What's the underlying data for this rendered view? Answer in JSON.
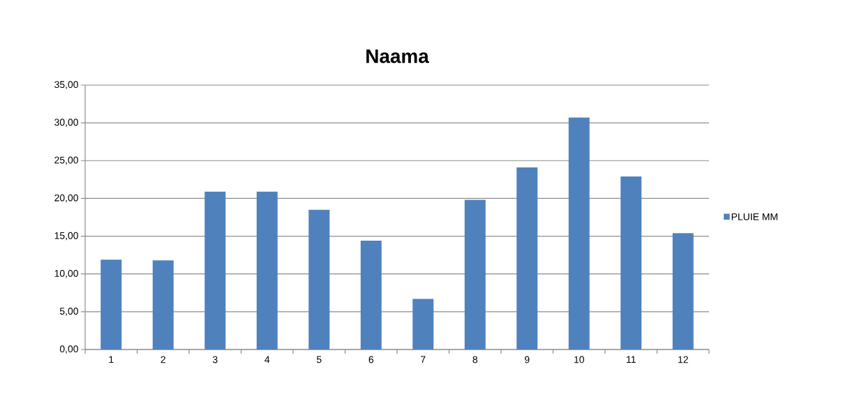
{
  "chart_data": {
    "type": "bar",
    "title": "Naama",
    "categories": [
      "1",
      "2",
      "3",
      "4",
      "5",
      "6",
      "7",
      "8",
      "9",
      "10",
      "11",
      "12"
    ],
    "series": [
      {
        "name": "PLUIE MM",
        "color": "#4f81bd",
        "values": [
          11.9,
          11.8,
          20.9,
          20.9,
          18.5,
          14.4,
          6.7,
          19.8,
          24.1,
          30.7,
          22.9,
          15.4
        ]
      }
    ],
    "ylim": [
      0,
      35
    ],
    "yticks": [
      {
        "value": 0,
        "label": "0,00"
      },
      {
        "value": 5,
        "label": "5,00"
      },
      {
        "value": 10,
        "label": "10,00"
      },
      {
        "value": 15,
        "label": "15,00"
      },
      {
        "value": 20,
        "label": "20,00"
      },
      {
        "value": 25,
        "label": "25,00"
      },
      {
        "value": 30,
        "label": "30,00"
      },
      {
        "value": 35,
        "label": "35,00"
      }
    ],
    "grid": "y",
    "legend": "right"
  }
}
